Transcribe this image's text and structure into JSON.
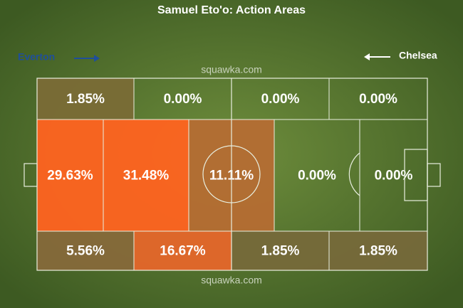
{
  "title": "Samuel Eto'o: Action Areas",
  "teams": {
    "left": "Everton",
    "right": "Chelsea"
  },
  "watermark": "squawka.com",
  "zones": {
    "top": [
      {
        "label": "1.85%",
        "color": "#7a6b36"
      },
      {
        "label": "0.00%",
        "color": "none"
      },
      {
        "label": "0.00%",
        "color": "none"
      },
      {
        "label": "0.00%",
        "color": "none"
      }
    ],
    "middle": [
      {
        "label": "29.63%",
        "color": "#ff6320"
      },
      {
        "label": "31.48%",
        "color": "#ff6320"
      },
      {
        "label": "11.11%",
        "color": "#b56d33"
      },
      {
        "label": "0.00%",
        "color": "none"
      },
      {
        "label": "0.00%",
        "color": "none"
      }
    ],
    "bottom": [
      {
        "label": "5.56%",
        "color": "#86693a"
      },
      {
        "label": "16.67%",
        "color": "#e5662a"
      },
      {
        "label": "1.85%",
        "color": "#76693a"
      },
      {
        "label": "1.85%",
        "color": "#76693a"
      }
    ]
  }
}
